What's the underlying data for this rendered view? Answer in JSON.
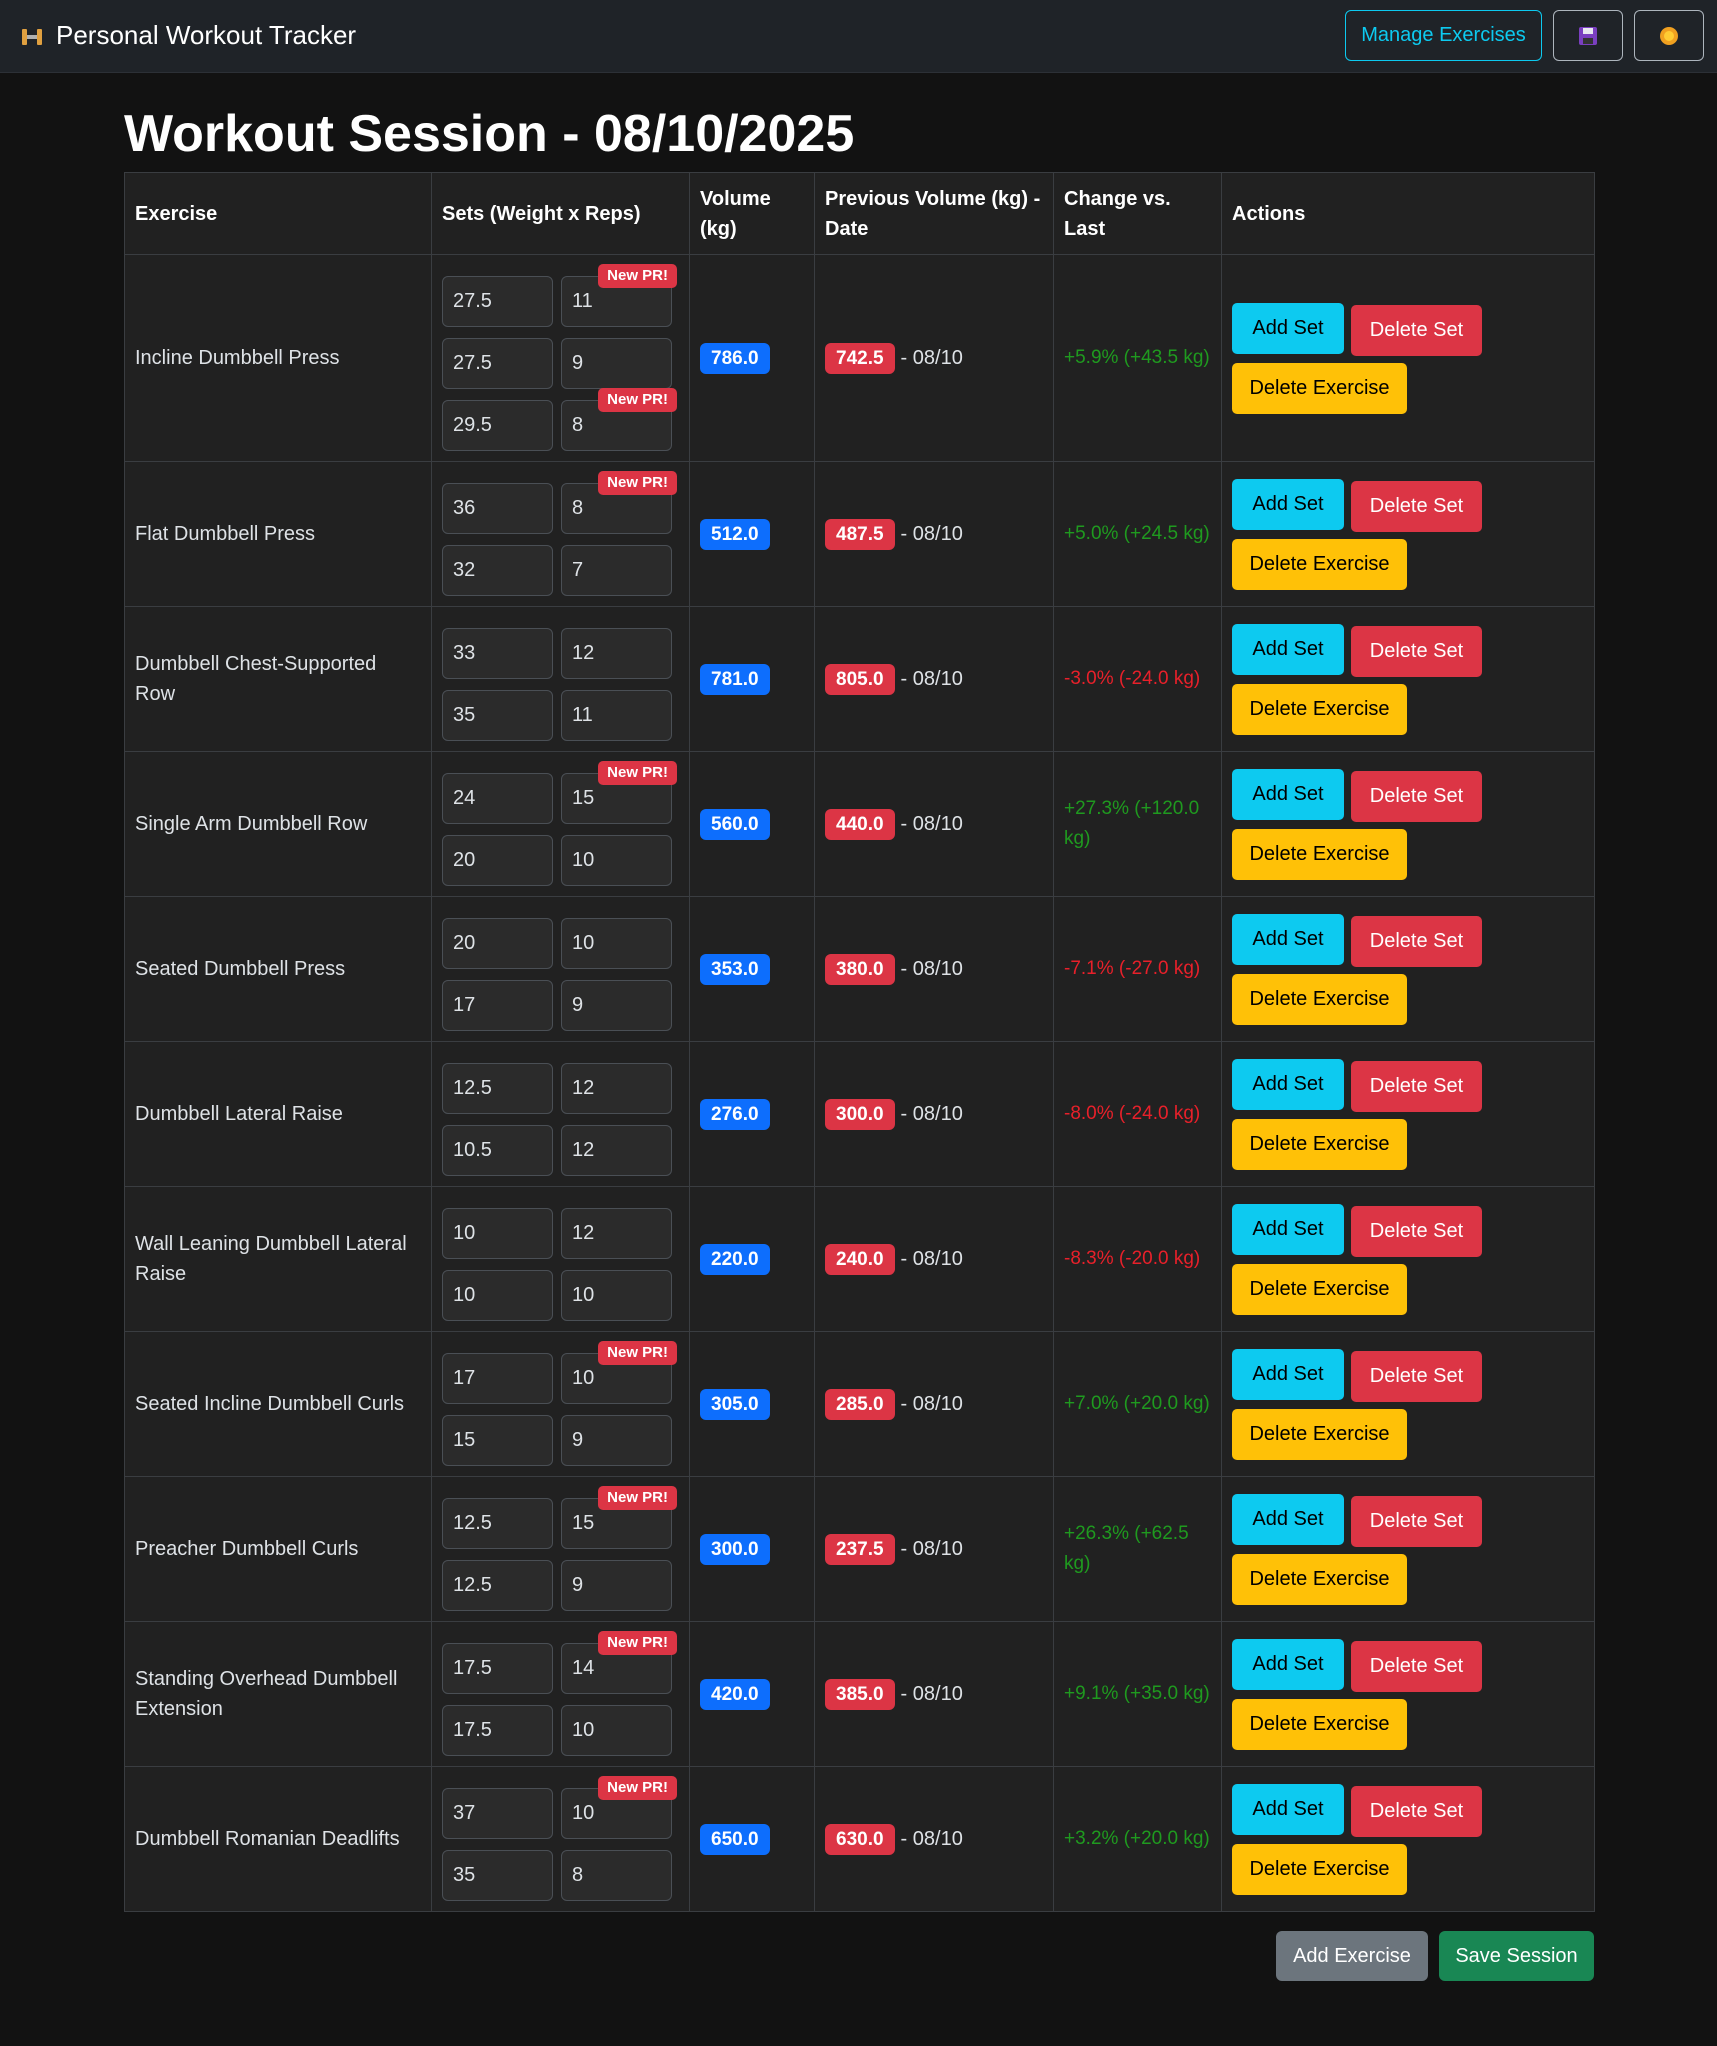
{
  "navbar": {
    "brand": "Personal Workout Tracker",
    "manage_button": "Manage Exercises"
  },
  "heading": "Workout Session - 08/10/2025",
  "table": {
    "columns": [
      "Exercise",
      "Sets (Weight x Reps)",
      "Volume (kg)",
      "Previous Volume (kg) - Date",
      "Change vs. Last",
      "Actions"
    ],
    "pr_label": "New PR!",
    "row_actions": [
      "Add Set",
      "Delete Set",
      "Delete Exercise"
    ],
    "rows": [
      {
        "exercise": "Incline Dumbbell Press",
        "sets": [
          {
            "weight": "27.5",
            "reps": "11",
            "pr": true
          },
          {
            "weight": "27.5",
            "reps": "9"
          },
          {
            "weight": "29.5",
            "reps": "8",
            "pr": true
          }
        ],
        "volume": "786.0",
        "previous": "742.5",
        "date": "- 08/10",
        "change": "+5.9% (+43.5 kg)"
      },
      {
        "exercise": "Flat Dumbbell Press",
        "sets": [
          {
            "weight": "36",
            "reps": "8",
            "pr": true
          },
          {
            "weight": "32",
            "reps": "7"
          }
        ],
        "volume": "512.0",
        "previous": "487.5",
        "date": "- 08/10",
        "change": "+5.0% (+24.5 kg)"
      },
      {
        "exercise": "Dumbbell Chest-Supported Row",
        "sets": [
          {
            "weight": "33",
            "reps": "12"
          },
          {
            "weight": "35",
            "reps": "11"
          }
        ],
        "volume": "781.0",
        "previous": "805.0",
        "date": "- 08/10",
        "change": "-3.0% (-24.0 kg)"
      },
      {
        "exercise": "Single Arm Dumbbell Row",
        "sets": [
          {
            "weight": "24",
            "reps": "15",
            "pr": true
          },
          {
            "weight": "20",
            "reps": "10"
          }
        ],
        "volume": "560.0",
        "previous": "440.0",
        "date": "- 08/10",
        "change": "+27.3% (+120.0 kg)"
      },
      {
        "exercise": "Seated Dumbbell Press",
        "sets": [
          {
            "weight": "20",
            "reps": "10"
          },
          {
            "weight": "17",
            "reps": "9"
          }
        ],
        "volume": "353.0",
        "previous": "380.0",
        "date": "- 08/10",
        "change": "-7.1% (-27.0 kg)"
      },
      {
        "exercise": "Dumbbell Lateral Raise",
        "sets": [
          {
            "weight": "12.5",
            "reps": "12"
          },
          {
            "weight": "10.5",
            "reps": "12"
          }
        ],
        "volume": "276.0",
        "previous": "300.0",
        "date": "- 08/10",
        "change": "-8.0% (-24.0 kg)"
      },
      {
        "exercise": "Wall Leaning Dumbbell Lateral Raise",
        "sets": [
          {
            "weight": "10",
            "reps": "12"
          },
          {
            "weight": "10",
            "reps": "10"
          }
        ],
        "volume": "220.0",
        "previous": "240.0",
        "date": "- 08/10",
        "change": "-8.3% (-20.0 kg)"
      },
      {
        "exercise": "Seated Incline Dumbbell Curls",
        "sets": [
          {
            "weight": "17",
            "reps": "10",
            "pr": true
          },
          {
            "weight": "15",
            "reps": "9"
          }
        ],
        "volume": "305.0",
        "previous": "285.0",
        "date": "- 08/10",
        "change": "+7.0% (+20.0 kg)"
      },
      {
        "exercise": "Preacher Dumbbell Curls",
        "sets": [
          {
            "weight": "12.5",
            "reps": "15",
            "pr": true
          },
          {
            "weight": "12.5",
            "reps": "9"
          }
        ],
        "volume": "300.0",
        "previous": "237.5",
        "date": "- 08/10",
        "change": "+26.3% (+62.5 kg)"
      },
      {
        "exercise": "Standing Overhead Dumbbell Extension",
        "sets": [
          {
            "weight": "17.5",
            "reps": "14",
            "pr": true
          },
          {
            "weight": "17.5",
            "reps": "10"
          }
        ],
        "volume": "420.0",
        "previous": "385.0",
        "date": "- 08/10",
        "change": "+9.1% (+35.0 kg)"
      },
      {
        "exercise": "Dumbbell Romanian Deadlifts",
        "sets": [
          {
            "weight": "37",
            "reps": "10",
            "pr": true
          },
          {
            "weight": "35",
            "reps": "8"
          }
        ],
        "volume": "650.0",
        "previous": "630.0",
        "date": "- 08/10",
        "change": "+3.2% (+20.0 kg)"
      }
    ]
  },
  "footer_buttons": [
    "Add Exercise",
    "Save Session"
  ]
}
